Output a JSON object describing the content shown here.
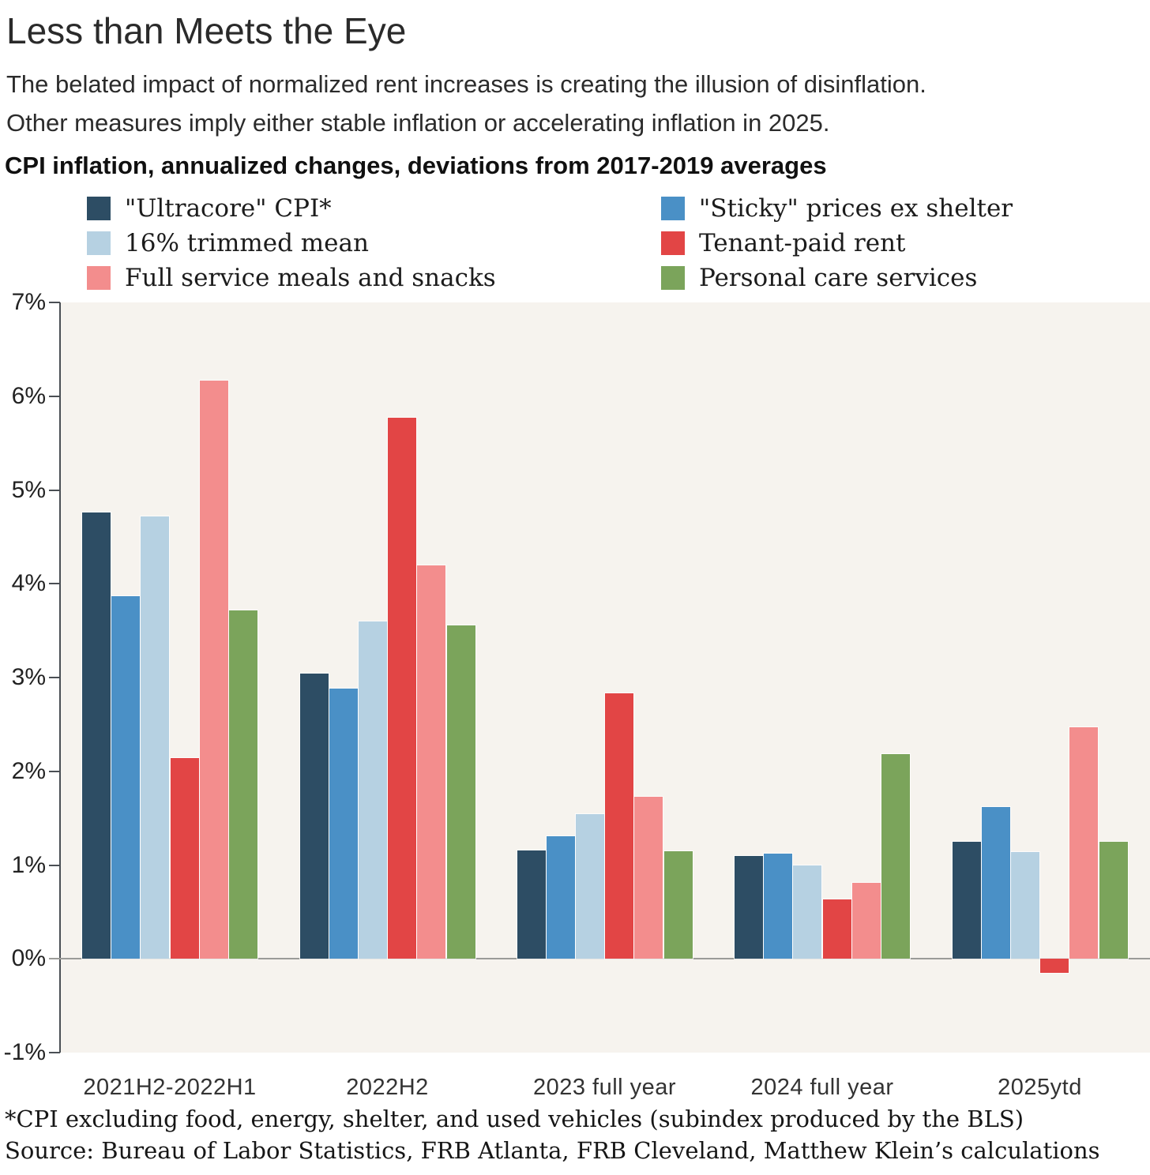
{
  "header": {
    "title": "Less than Meets the Eye",
    "subtitle_line1": "The belated impact of normalized rent increases is creating the illusion of disinflation.",
    "subtitle_line2": "Other measures imply either stable inflation or accelerating inflation in 2025.",
    "heading": "CPI inflation, annualized changes, deviations from 2017-2019 averages"
  },
  "footer": {
    "footnote": "*CPI excluding food, energy, shelter, and used vehicles (subindex produced by the BLS)",
    "source": "Source: Bureau of Labor Statistics, FRB Atlanta, FRB Cleveland, Matthew Klein’s calculations"
  },
  "colors": {
    "plot_background": "#f6f3ee",
    "zero_line": "#9b9b98",
    "axis": "#4a4f54"
  },
  "chart_data": {
    "type": "bar",
    "title": "CPI inflation, annualized changes, deviations from 2017-2019 averages",
    "categories": [
      "2021H2-2022H1",
      "2022H2",
      "2023 full year",
      "2024 full year",
      "2025ytd"
    ],
    "series": [
      {
        "name": "\"Ultracore\" CPI*",
        "color": "#2d4d64",
        "values": [
          4.76,
          3.04,
          1.16,
          1.1,
          1.25
        ]
      },
      {
        "name": "\"Sticky\" prices ex shelter",
        "color": "#4a90c6",
        "values": [
          3.87,
          2.88,
          1.31,
          1.12,
          1.62
        ]
      },
      {
        "name": "16% trimmed mean",
        "color": "#b6d1e2",
        "values": [
          4.72,
          3.6,
          1.54,
          1.0,
          1.14
        ]
      },
      {
        "name": "Tenant-paid rent",
        "color": "#e24545",
        "values": [
          2.14,
          5.77,
          2.83,
          0.63,
          -0.15
        ]
      },
      {
        "name": "Full service meals and snacks",
        "color": "#f38d8d",
        "values": [
          6.17,
          4.2,
          1.73,
          0.81,
          2.47
        ]
      },
      {
        "name": "Personal care services",
        "color": "#7ba45b",
        "values": [
          3.72,
          3.56,
          1.15,
          2.18,
          1.25
        ]
      }
    ],
    "ylim": [
      -1,
      7
    ],
    "ytick_values": [
      7,
      6,
      5,
      4,
      3,
      2,
      1,
      0,
      -1
    ],
    "ytick_labels": [
      "7%",
      "6%",
      "5%",
      "4%",
      "3%",
      "2%",
      "1%",
      "0%",
      "-1%"
    ],
    "legend_position": "top",
    "legend_column_order": [
      0,
      2,
      4,
      1,
      3,
      5
    ],
    "grid": false
  }
}
